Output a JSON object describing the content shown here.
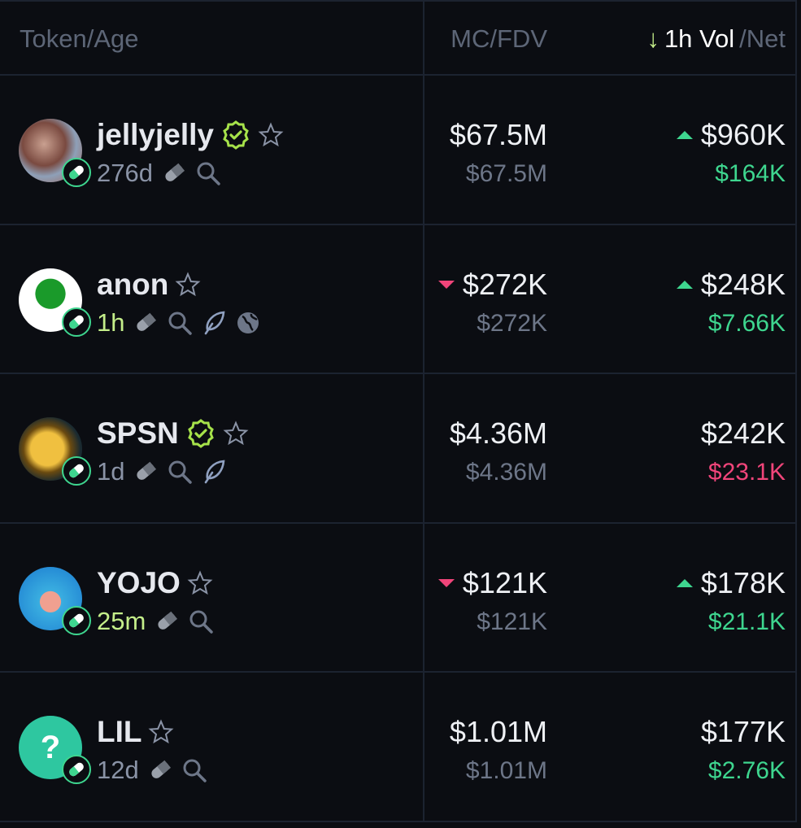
{
  "header": {
    "token_age": "Token/Age",
    "mc_fdv": "MC/FDV",
    "sort_arrow": "↓",
    "vol": "1h Vol",
    "net": "/Net"
  },
  "colors": {
    "green": "#3ed68f",
    "red": "#f0457a",
    "verified": "#a6e24a",
    "new_age": "#c4ee8a"
  },
  "rows": [
    {
      "name": "jellyjelly",
      "verified": true,
      "age": "276d",
      "age_new": false,
      "icons": [
        "pill-icon",
        "search-icon"
      ],
      "mc": "$67.5M",
      "mc_trend": "",
      "fdv": "$67.5M",
      "vol": "$960K",
      "vol_trend": "up",
      "net": "$164K",
      "net_color": "green"
    },
    {
      "name": "anon",
      "verified": false,
      "age": "1h",
      "age_new": true,
      "icons": [
        "pill-icon",
        "search-icon",
        "feather-icon",
        "globe-icon"
      ],
      "mc": "$272K",
      "mc_trend": "down",
      "fdv": "$272K",
      "vol": "$248K",
      "vol_trend": "up",
      "net": "$7.66K",
      "net_color": "green"
    },
    {
      "name": "SPSN",
      "verified": true,
      "age": "1d",
      "age_new": false,
      "icons": [
        "pill-icon",
        "search-icon",
        "feather-icon"
      ],
      "mc": "$4.36M",
      "mc_trend": "",
      "fdv": "$4.36M",
      "vol": "$242K",
      "vol_trend": "",
      "net": "$23.1K",
      "net_color": "red"
    },
    {
      "name": "YOJO",
      "verified": false,
      "age": "25m",
      "age_new": true,
      "icons": [
        "pill-icon",
        "search-icon"
      ],
      "mc": "$121K",
      "mc_trend": "down",
      "fdv": "$121K",
      "vol": "$178K",
      "vol_trend": "up",
      "net": "$21.1K",
      "net_color": "green"
    },
    {
      "name": "LIL",
      "verified": false,
      "age": "12d",
      "age_new": false,
      "icons": [
        "pill-icon",
        "search-icon"
      ],
      "mc": "$1.01M",
      "mc_trend": "",
      "fdv": "$1.01M",
      "vol": "$177K",
      "vol_trend": "",
      "net": "$2.76K",
      "net_color": "green"
    }
  ]
}
